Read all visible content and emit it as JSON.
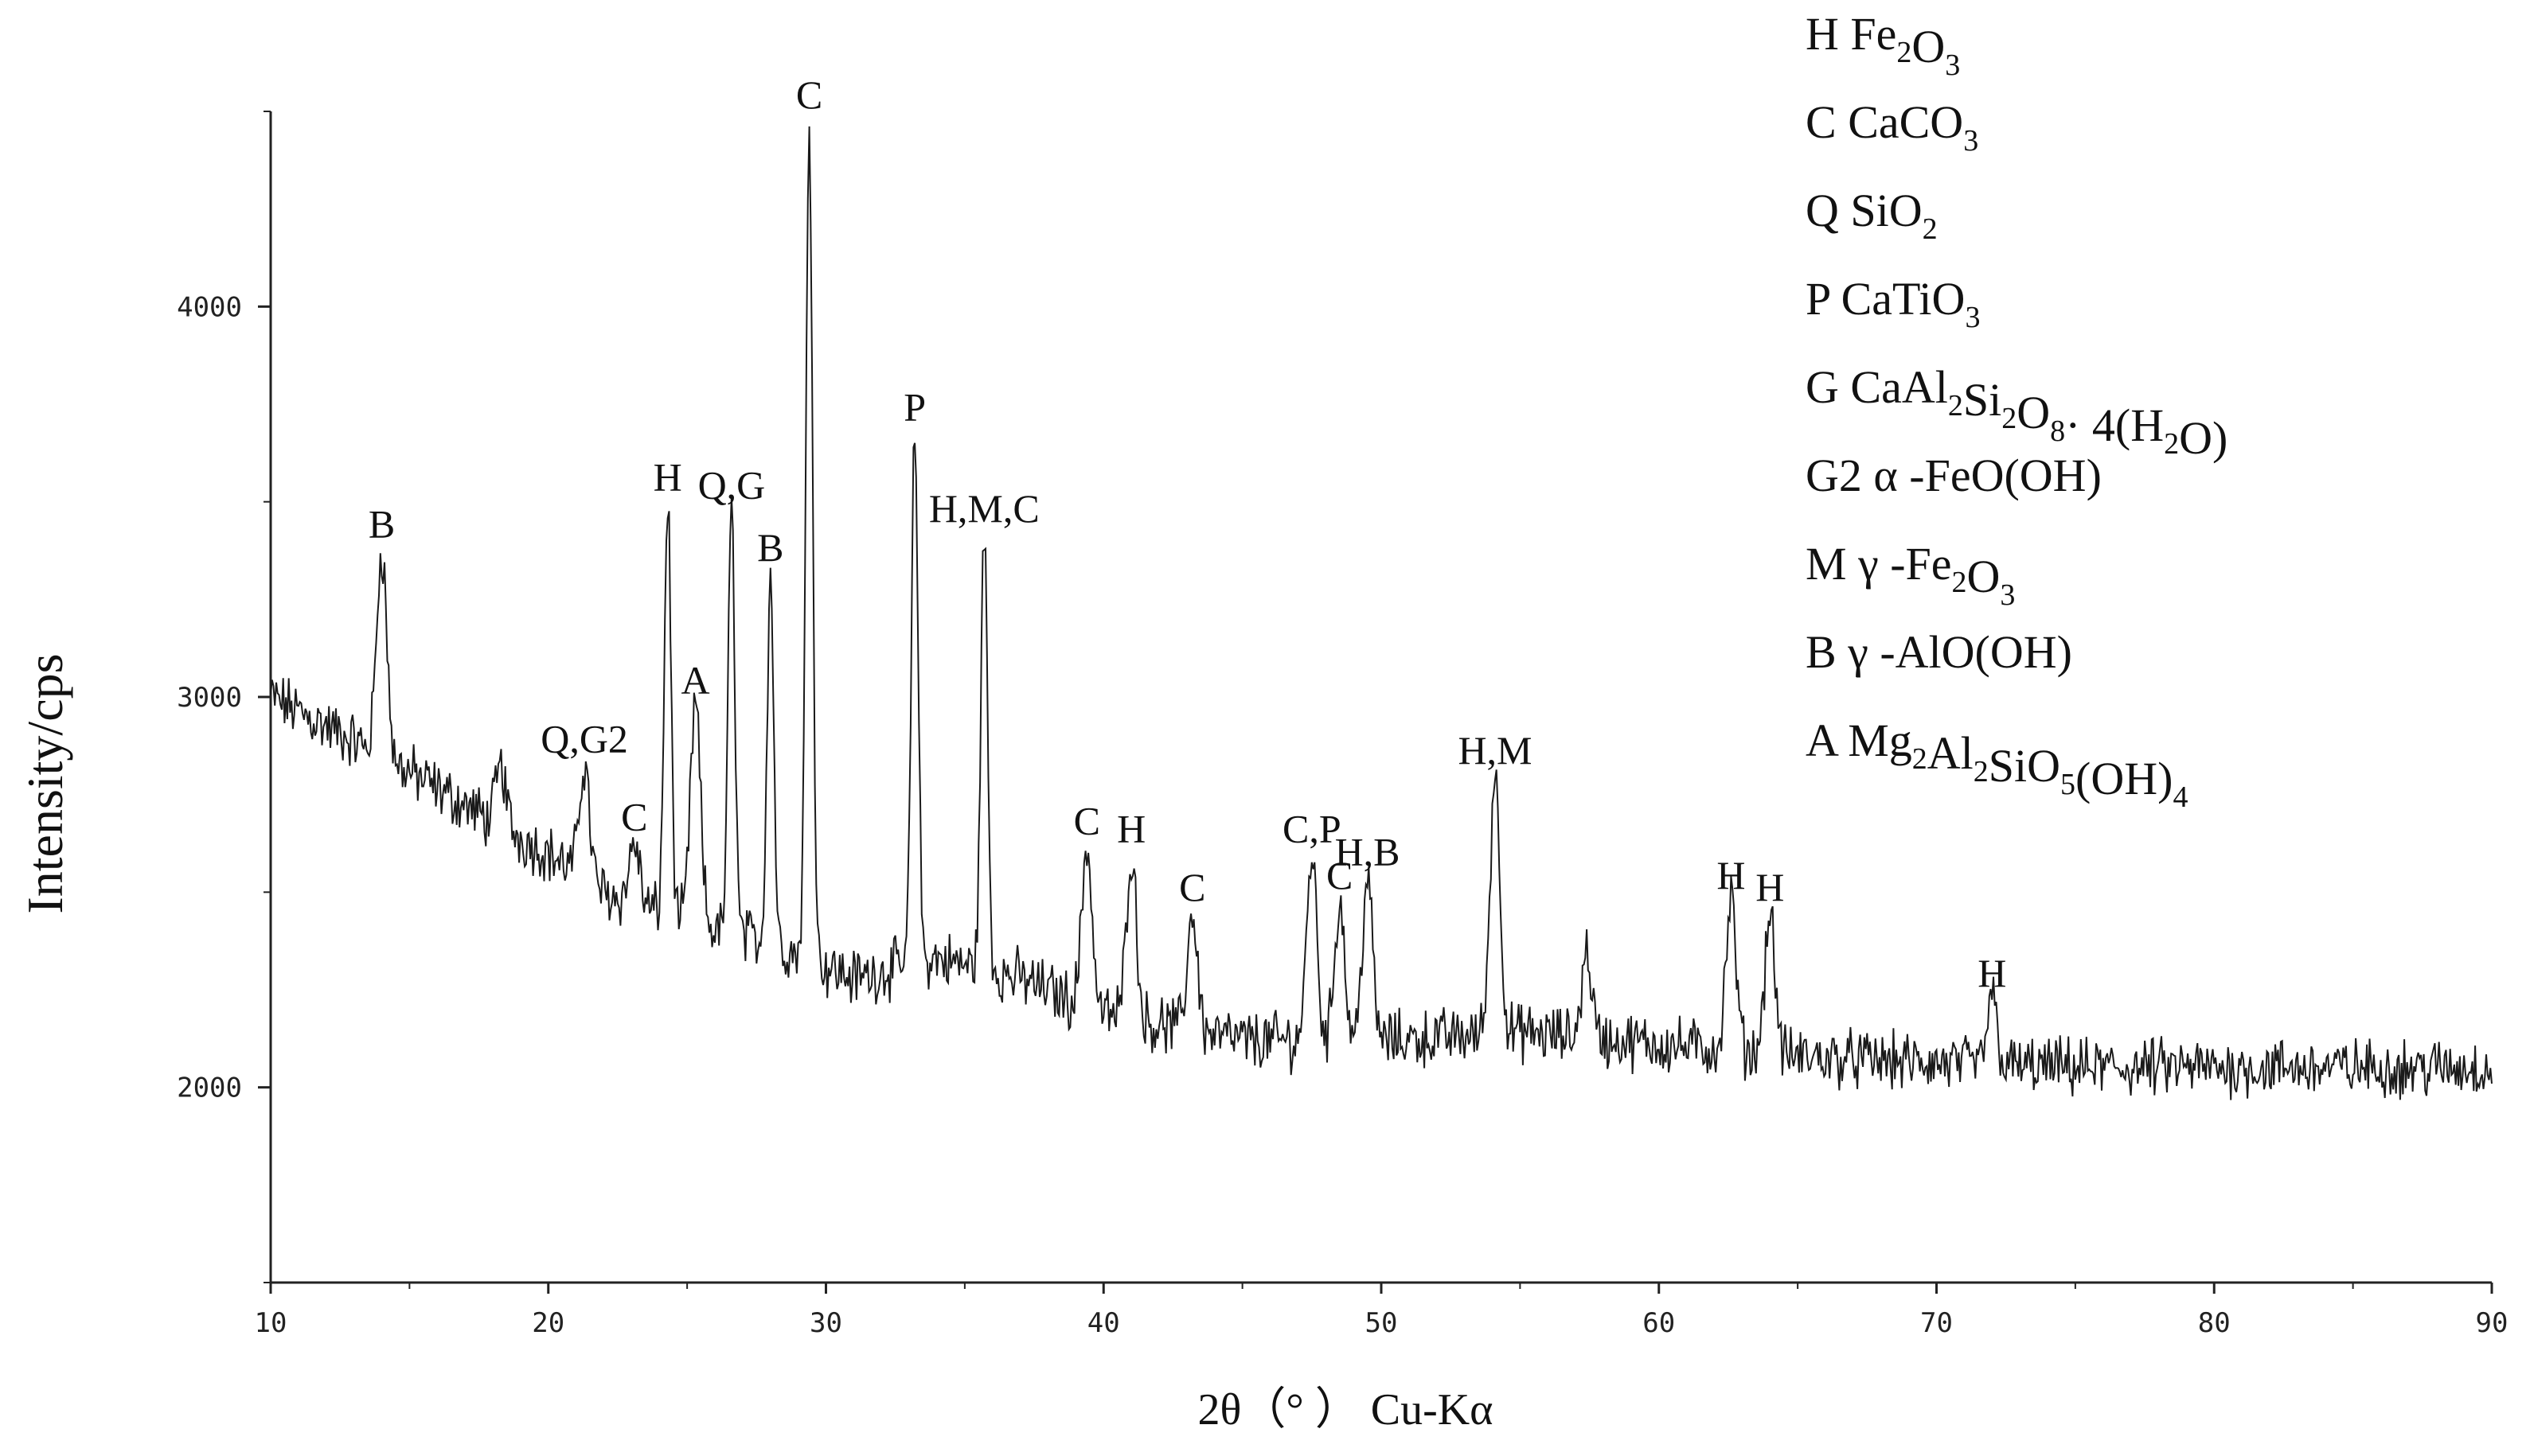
{
  "chart_data": {
    "type": "line",
    "title": "",
    "xlabel": "2θ（°  ）  Cu-Kα",
    "ylabel": "Intensity/cps",
    "xlim": [
      10,
      90
    ],
    "ylim": [
      1500,
      4500
    ],
    "x_ticks": [
      "10",
      "20",
      "30",
      "40",
      "50",
      "60",
      "70",
      "80",
      "90"
    ],
    "y_ticks": [
      "2000",
      "3000",
      "4000"
    ],
    "grid": false,
    "color": "#1a1a1a",
    "baseline": [
      [
        10,
        3000
      ],
      [
        14,
        2850
      ],
      [
        18,
        2680
      ],
      [
        20,
        2600
      ],
      [
        22,
        2500
      ],
      [
        25,
        2420
      ],
      [
        28,
        2370
      ],
      [
        31,
        2280
      ],
      [
        34,
        2330
      ],
      [
        37,
        2280
      ],
      [
        40,
        2190
      ],
      [
        45,
        2120
      ],
      [
        50,
        2120
      ],
      [
        55,
        2140
      ],
      [
        60,
        2110
      ],
      [
        65,
        2080
      ],
      [
        70,
        2060
      ],
      [
        75,
        2050
      ],
      [
        80,
        2050
      ],
      [
        85,
        2050
      ],
      [
        90,
        2050
      ]
    ],
    "peaks": [
      {
        "x": 14.0,
        "y": 3380,
        "label": "B"
      },
      {
        "x": 18.3,
        "y": 2820
      },
      {
        "x": 21.3,
        "y": 2830,
        "label": "Q,G2"
      },
      {
        "x": 23.1,
        "y": 2630,
        "label": "C"
      },
      {
        "x": 24.3,
        "y": 3500,
        "label": "H"
      },
      {
        "x": 25.3,
        "y": 2980,
        "label": "A"
      },
      {
        "x": 26.6,
        "y": 3480,
        "label": "Q,G"
      },
      {
        "x": 28.0,
        "y": 3320,
        "label": "B"
      },
      {
        "x": 29.4,
        "y": 4480,
        "label": "C"
      },
      {
        "x": 33.2,
        "y": 3680,
        "label": "P"
      },
      {
        "x": 35.7,
        "y": 3420,
        "label": "H,M,C"
      },
      {
        "x": 39.4,
        "y": 2620,
        "label": "C"
      },
      {
        "x": 41.0,
        "y": 2600,
        "label": "H"
      },
      {
        "x": 43.2,
        "y": 2450,
        "label": "C"
      },
      {
        "x": 47.5,
        "y": 2600,
        "label": "C,P"
      },
      {
        "x": 48.5,
        "y": 2480,
        "label": "C"
      },
      {
        "x": 49.5,
        "y": 2540,
        "label": "H,B"
      },
      {
        "x": 54.1,
        "y": 2800,
        "label": "H,M"
      },
      {
        "x": 57.4,
        "y": 2350
      },
      {
        "x": 62.6,
        "y": 2480,
        "label": "H"
      },
      {
        "x": 64.0,
        "y": 2450,
        "label": "H"
      },
      {
        "x": 72.0,
        "y": 2230,
        "label": "H"
      }
    ],
    "legend": [
      {
        "code": "H",
        "parts": [
          "Fe",
          "2",
          "O",
          "3"
        ]
      },
      {
        "code": "C",
        "parts": [
          "CaCO",
          "3"
        ]
      },
      {
        "code": "Q",
        "parts": [
          "SiO",
          "2"
        ]
      },
      {
        "code": "P",
        "parts": [
          "CaTiO",
          "3"
        ]
      },
      {
        "code": "G",
        "parts": [
          "CaAl",
          "2",
          "Si",
          "2",
          "O",
          "8",
          "·  4(H",
          "2",
          "O)"
        ]
      },
      {
        "code": "G2",
        "parts": [
          "α  -FeO(OH)"
        ]
      },
      {
        "code": "M",
        "parts": [
          "γ  -Fe",
          "2",
          "O",
          "3"
        ]
      },
      {
        "code": "B",
        "parts": [
          "γ  -AlO(OH)"
        ]
      },
      {
        "code": "A",
        "parts": [
          "Mg",
          "2",
          "Al",
          "2",
          "SiO",
          "5",
          "(OH)",
          "4"
        ]
      }
    ]
  }
}
